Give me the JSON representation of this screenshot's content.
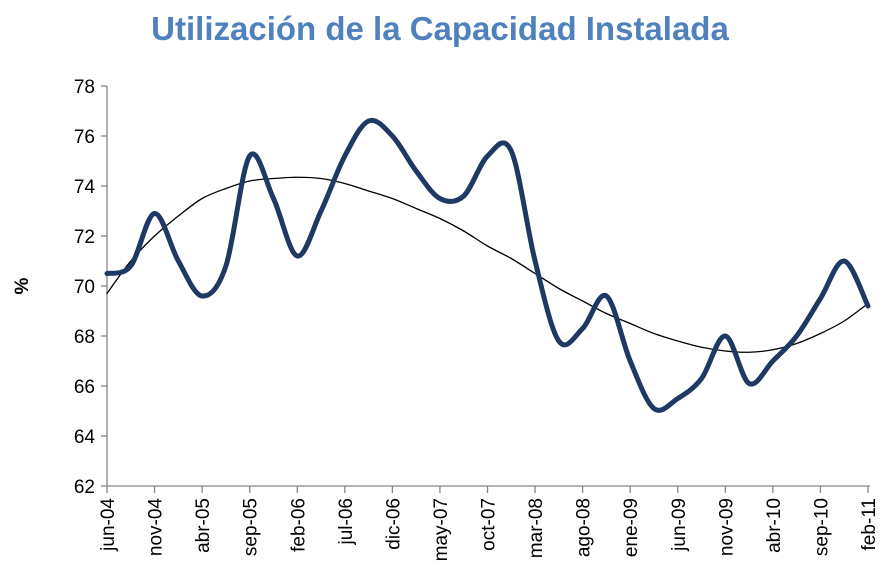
{
  "chart_data": {
    "type": "line",
    "title": "Utilización de la Capacidad Instalada",
    "y_label": "%",
    "categories": [
      "jun-04",
      null,
      "nov-04",
      null,
      "abr-05",
      null,
      "sep-05",
      null,
      "feb-06",
      null,
      "jul-06",
      null,
      "dic-06",
      null,
      "may-07",
      null,
      "oct-07",
      null,
      "mar-08",
      null,
      "ago-08",
      null,
      "ene-09",
      null,
      "jun-09",
      null,
      "nov-09",
      null,
      "abr-10",
      null,
      "sep-10",
      null,
      "feb-11"
    ],
    "series": [
      {
        "color": "#1f3864",
        "values": [
          70.5,
          70.8,
          72.9,
          71.0,
          69.6,
          70.8,
          75.2,
          73.5,
          71.2,
          73.0,
          75.2,
          76.6,
          76.0,
          74.6,
          73.5,
          73.6,
          75.2,
          75.4,
          71.0,
          67.8,
          68.3,
          69.6,
          67.0,
          65.1,
          65.5,
          66.3,
          68.0,
          66.1,
          67.0,
          68.0,
          69.5,
          71.0,
          69.2
        ]
      },
      {
        "color": "#000000",
        "values": [
          69.7,
          71.0,
          72.0,
          72.8,
          73.5,
          73.9,
          74.2,
          74.3,
          74.35,
          74.3,
          74.1,
          73.8,
          73.5,
          73.1,
          72.7,
          72.2,
          71.6,
          71.1,
          70.5,
          69.9,
          69.4,
          68.9,
          68.5,
          68.1,
          67.8,
          67.55,
          67.4,
          67.35,
          67.45,
          67.7,
          68.1,
          68.6,
          69.3
        ]
      }
    ],
    "ylim": [
      62,
      78
    ],
    "yticks": [
      62,
      64,
      66,
      68,
      70,
      72,
      74,
      76,
      78
    ],
    "grid": false
  }
}
